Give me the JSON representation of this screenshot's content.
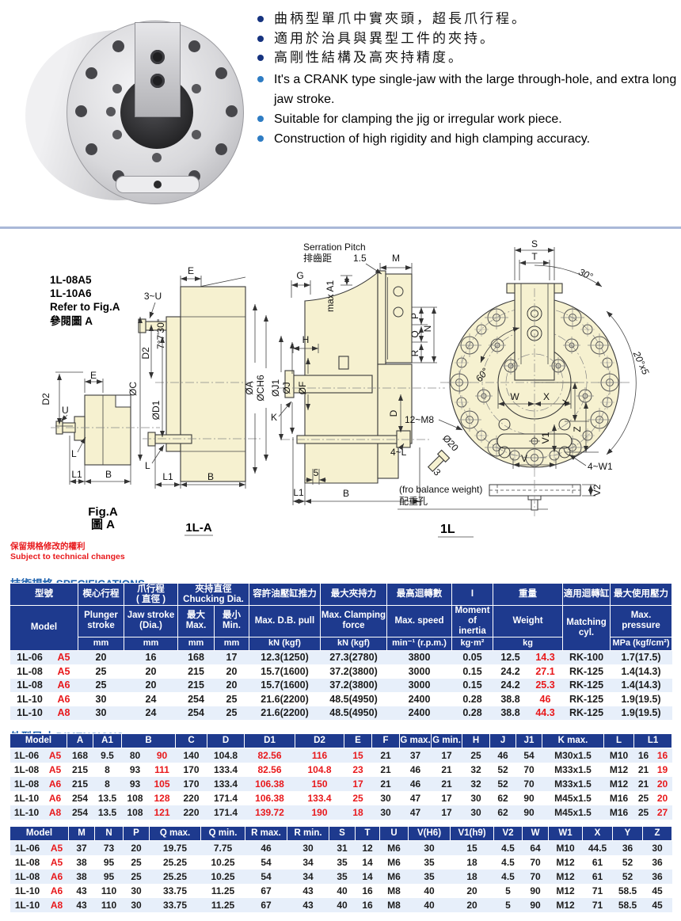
{
  "colors": {
    "table_header": "#1e3a8e",
    "highlight_red": "#e8191c",
    "title_blue": "#1a5fad",
    "bullet_zh": "#16337f",
    "bullet_en": "#2e7cc3",
    "drawing_fill": "#f6f1d0",
    "divider": "#a9b8d8"
  },
  "features": {
    "zh": [
      "曲柄型單爪中實夾頭，超長爪行程。",
      "適用於治具與異型工件的夾持。",
      "高剛性結構及高夾持精度。"
    ],
    "en": [
      "It's a CRANK type single-jaw with the large through-hole, and extra long jaw stroke.",
      "Suitable for clamping the jig or irregular work piece.",
      "Construction of high rigidity and high clamping accuracy."
    ]
  },
  "dw": {
    "note": [
      "1L-08A5",
      "1L-10A6",
      "Refer to Fig.A",
      "參閱圖 A"
    ],
    "figA": {
      "cap1": "Fig.A",
      "cap2": "圖 A",
      "d2": "D2",
      "e": "E",
      "u": "U",
      "l": "L",
      "l1": "L1",
      "b": "B"
    },
    "la": {
      "cap": "1L-A",
      "e": "E",
      "u": "3~U",
      "taper": "7°7'30\"",
      "d2": "D2",
      "c": "ØC",
      "d1": "ØD1",
      "l": "L",
      "l1": "L1",
      "b": "B"
    },
    "sec": {
      "cap": "1L",
      "sp1": "Serration Pitch",
      "sp2": "排齒距",
      "sp3": "1.5",
      "g": "G",
      "m": "M",
      "a1": "max A1",
      "p": "P",
      "n": "N",
      "q": "Q",
      "r": "R",
      "h": "H",
      "oa": "ØA",
      "och": "ØCH6",
      "oj1": "ØJ1",
      "oj": "ØJ",
      "of": "ØF",
      "k": "K",
      "d": "D",
      "m8": "12~M8",
      "l4": "4~L",
      "five": "5",
      "l1": "L1",
      "b": "B",
      "o20": "Ø20",
      "three": "3",
      "bw1": "(fro balance weight)",
      "bw2": "配重孔"
    },
    "fv": {
      "s": "S",
      "t": "T",
      "a30": "30°",
      "a20": "20°x5",
      "a60": "60°",
      "w": "W",
      "x": "X",
      "y": "Y",
      "v": "V",
      "v1": "V1",
      "v2": "V2",
      "z": "Z",
      "w1": "4~W1"
    }
  },
  "notice": {
    "zh": "保留規格修改的權利",
    "en": "Subject to technical changes"
  },
  "spec": {
    "title": "技術規格 SPECIFICATIONS",
    "head": [
      [
        {
          "t": "型號",
          "c": 2
        },
        {
          "t": "楔心行程"
        },
        {
          "t": "爪行程\n( 直徑 )"
        },
        {
          "t": "夾持直徑\nChucking Dia.",
          "c": 2
        },
        {
          "t": "容許油壓缸推力"
        },
        {
          "t": "最大夾持力"
        },
        {
          "t": "最高迴轉數"
        },
        {
          "t": "I"
        },
        {
          "t": "重量",
          "c": 2
        },
        {
          "t": "適用迴轉缸"
        },
        {
          "t": "最大使用壓力"
        }
      ],
      [
        {
          "t": "Model",
          "c": 2,
          "r": 2
        },
        {
          "t": "Plunger\nstroke"
        },
        {
          "t": "Jaw stroke\n(Dia.)"
        },
        {
          "t": "最大\nMax."
        },
        {
          "t": "最小\nMin."
        },
        {
          "t": "Max. D.B. pull"
        },
        {
          "t": "Max. Clamping\nforce"
        },
        {
          "t": "Max. speed"
        },
        {
          "t": "Moment of\ninertia"
        },
        {
          "t": "Weight",
          "c": 2
        },
        {
          "t": "Matching cyl.",
          "r": 2
        },
        {
          "t": "Max. pressure"
        }
      ],
      [
        {
          "t": "mm"
        },
        {
          "t": "mm"
        },
        {
          "t": "mm"
        },
        {
          "t": "mm"
        },
        {
          "t": "kN (kgf)"
        },
        {
          "t": "kN (kgf)"
        },
        {
          "t": "min⁻¹ (r.p.m.)"
        },
        {
          "t": "kg·m²"
        },
        {
          "t": "kg",
          "c": 2
        },
        {
          "t": "MPa (kgf/cm²)"
        }
      ]
    ],
    "rows": [
      [
        "1L-06",
        {
          "v": "A5",
          "r": 1
        },
        "20",
        "16",
        "168",
        "17",
        "12.3(1250)",
        "27.3(2780)",
        "3800",
        "0.05",
        "12.5",
        {
          "v": "14.3",
          "r": 1
        },
        "RK-100",
        "1.7(17.5)"
      ],
      [
        "1L-08",
        {
          "v": "A5",
          "r": 1
        },
        "25",
        "20",
        "215",
        "20",
        "15.7(1600)",
        "37.2(3800)",
        "3000",
        "0.15",
        "24.2",
        {
          "v": "27.1",
          "r": 1
        },
        "RK-125",
        "1.4(14.3)"
      ],
      [
        "1L-08",
        {
          "v": "A6",
          "r": 1
        },
        "25",
        "20",
        "215",
        "20",
        "15.7(1600)",
        "37.2(3800)",
        "3000",
        "0.15",
        "24.2",
        {
          "v": "25.3",
          "r": 1
        },
        "RK-125",
        "1.4(14.3)"
      ],
      [
        "1L-10",
        {
          "v": "A6",
          "r": 1
        },
        "30",
        "24",
        "254",
        "25",
        "21.6(2200)",
        "48.5(4950)",
        "2400",
        "0.28",
        "38.8",
        {
          "v": "46",
          "r": 1
        },
        "RK-125",
        "1.9(19.5)"
      ],
      [
        "1L-10",
        {
          "v": "A8",
          "r": 1
        },
        "30",
        "24",
        "254",
        "25",
        "21.6(2200)",
        "48.5(4950)",
        "2400",
        "0.28",
        "38.8",
        {
          "v": "44.3",
          "r": 1
        },
        "RK-125",
        "1.9(19.5)"
      ]
    ]
  },
  "dims": {
    "title": "外型尺寸 DIMENSIONS",
    "t1": {
      "head": [
        [
          {
            "t": "Model",
            "c": 2
          },
          {
            "t": "A"
          },
          {
            "t": "A1"
          },
          {
            "t": "B",
            "c": 2
          },
          {
            "t": "C"
          },
          {
            "t": "D"
          },
          {
            "t": "D1"
          },
          {
            "t": "D2"
          },
          {
            "t": "E"
          },
          {
            "t": "F"
          },
          {
            "t": "G max."
          },
          {
            "t": "G min."
          },
          {
            "t": "H"
          },
          {
            "t": "J"
          },
          {
            "t": "J1"
          },
          {
            "t": "K max."
          },
          {
            "t": "L"
          },
          {
            "t": "L1",
            "c": 2
          }
        ]
      ],
      "rows": [
        [
          "1L-06",
          {
            "v": "A5",
            "r": 1
          },
          "168",
          "9.5",
          "80",
          {
            "v": "90",
            "r": 1
          },
          "140",
          "104.8",
          {
            "v": "82.56",
            "r": 1
          },
          {
            "v": "116",
            "r": 1
          },
          {
            "v": "15",
            "r": 1
          },
          "21",
          "37",
          "17",
          "25",
          "46",
          "54",
          "M30x1.5",
          "M10",
          "16",
          {
            "v": "16",
            "r": 1
          }
        ],
        [
          "1L-08",
          {
            "v": "A5",
            "r": 1
          },
          "215",
          "8",
          "93",
          {
            "v": "111",
            "r": 1
          },
          "170",
          "133.4",
          {
            "v": "82.56",
            "r": 1
          },
          {
            "v": "104.8",
            "r": 1
          },
          {
            "v": "23",
            "r": 1
          },
          "21",
          "46",
          "21",
          "32",
          "52",
          "70",
          "M33x1.5",
          "M12",
          "21",
          {
            "v": "19",
            "r": 1
          }
        ],
        [
          "1L-08",
          {
            "v": "A6",
            "r": 1
          },
          "215",
          "8",
          "93",
          {
            "v": "105",
            "r": 1
          },
          "170",
          "133.4",
          {
            "v": "106.38",
            "r": 1
          },
          {
            "v": "150",
            "r": 1
          },
          {
            "v": "17",
            "r": 1
          },
          "21",
          "46",
          "21",
          "32",
          "52",
          "70",
          "M33x1.5",
          "M12",
          "21",
          {
            "v": "20",
            "r": 1
          }
        ],
        [
          "1L-10",
          {
            "v": "A6",
            "r": 1
          },
          "254",
          "13.5",
          "108",
          {
            "v": "128",
            "r": 1
          },
          "220",
          "171.4",
          {
            "v": "106.38",
            "r": 1
          },
          {
            "v": "133.4",
            "r": 1
          },
          {
            "v": "25",
            "r": 1
          },
          "30",
          "47",
          "17",
          "30",
          "62",
          "90",
          "M45x1.5",
          "M16",
          "25",
          {
            "v": "20",
            "r": 1
          }
        ],
        [
          "1L-10",
          {
            "v": "A8",
            "r": 1
          },
          "254",
          "13.5",
          "108",
          {
            "v": "121",
            "r": 1
          },
          "220",
          "171.4",
          {
            "v": "139.72",
            "r": 1
          },
          {
            "v": "190",
            "r": 1
          },
          {
            "v": "18",
            "r": 1
          },
          "30",
          "47",
          "17",
          "30",
          "62",
          "90",
          "M45x1.5",
          "M16",
          "25",
          {
            "v": "27",
            "r": 1
          }
        ]
      ]
    },
    "t2": {
      "head": [
        [
          {
            "t": "Model",
            "c": 2
          },
          {
            "t": "M"
          },
          {
            "t": "N"
          },
          {
            "t": "P"
          },
          {
            "t": "Q max."
          },
          {
            "t": "Q min."
          },
          {
            "t": "R max."
          },
          {
            "t": "R min."
          },
          {
            "t": "S"
          },
          {
            "t": "T"
          },
          {
            "t": "U"
          },
          {
            "t": "V(H6)"
          },
          {
            "t": "V1(h9)"
          },
          {
            "t": "V2"
          },
          {
            "t": "W"
          },
          {
            "t": "W1"
          },
          {
            "t": "X"
          },
          {
            "t": "Y"
          },
          {
            "t": "Z"
          }
        ]
      ],
      "rows": [
        [
          "1L-06",
          {
            "v": "A5",
            "r": 1
          },
          "37",
          "73",
          "20",
          "19.75",
          "7.75",
          "46",
          "30",
          "31",
          "12",
          "M6",
          "30",
          "15",
          "4.5",
          "64",
          "M10",
          "44.5",
          "36",
          "30"
        ],
        [
          "1L-08",
          {
            "v": "A5",
            "r": 1
          },
          "38",
          "95",
          "25",
          "25.25",
          "10.25",
          "54",
          "34",
          "35",
          "14",
          "M6",
          "35",
          "18",
          "4.5",
          "70",
          "M12",
          "61",
          "52",
          "36"
        ],
        [
          "1L-08",
          {
            "v": "A6",
            "r": 1
          },
          "38",
          "95",
          "25",
          "25.25",
          "10.25",
          "54",
          "34",
          "35",
          "14",
          "M6",
          "35",
          "18",
          "4.5",
          "70",
          "M12",
          "61",
          "52",
          "36"
        ],
        [
          "1L-10",
          {
            "v": "A6",
            "r": 1
          },
          "43",
          "110",
          "30",
          "33.75",
          "11.25",
          "67",
          "43",
          "40",
          "16",
          "M8",
          "40",
          "20",
          "5",
          "90",
          "M12",
          "71",
          "58.5",
          "45"
        ],
        [
          "1L-10",
          {
            "v": "A8",
            "r": 1
          },
          "43",
          "110",
          "30",
          "33.75",
          "11.25",
          "67",
          "43",
          "40",
          "16",
          "M8",
          "40",
          "20",
          "5",
          "90",
          "M12",
          "71",
          "58.5",
          "45"
        ]
      ]
    }
  }
}
